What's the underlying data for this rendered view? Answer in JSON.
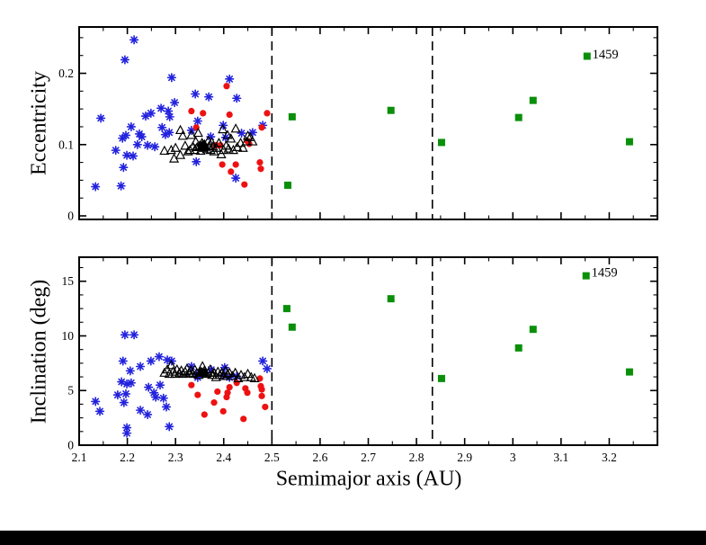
{
  "colors": {
    "blue": "#2222dd",
    "red": "#ee1111",
    "green": "#0a8f0a",
    "black": "#000000",
    "background": "#ffffff",
    "bottom_bar": "#000000"
  },
  "annotation_label": "1459",
  "chart_data": [
    {
      "type": "scatter",
      "panel": "top",
      "xlabel": "",
      "ylabel": "Eccentricity",
      "xlim": [
        2.1,
        3.3
      ],
      "ylim": [
        -0.005,
        0.265
      ],
      "grid": false,
      "legend": "none",
      "xticks": {
        "values": [
          2.1,
          2.2,
          2.3,
          2.4,
          2.5,
          2.6,
          2.7,
          2.8,
          2.9,
          3.0,
          3.1,
          3.2
        ],
        "labels": [],
        "minor_step": 0.05
      },
      "yticks": {
        "values": [
          0,
          0.1,
          0.2
        ],
        "labels": [
          "0",
          "0.1",
          "0.2"
        ],
        "minor_step": 0.025
      },
      "vlines": [
        2.5,
        2.833
      ],
      "annotation": {
        "text": "1459",
        "x": 3.165,
        "y": 0.226
      },
      "series": [
        {
          "name": "blue-asterisks",
          "marker": "asterisk",
          "color": "blue",
          "points": [
            [
              2.214,
              0.247
            ],
            [
              2.195,
              0.219
            ],
            [
              2.292,
              0.194
            ],
            [
              2.298,
              0.159
            ],
            [
              2.145,
              0.137
            ],
            [
              2.238,
              0.14
            ],
            [
              2.249,
              0.144
            ],
            [
              2.27,
              0.151
            ],
            [
              2.285,
              0.147
            ],
            [
              2.288,
              0.139
            ],
            [
              2.208,
              0.125
            ],
            [
              2.272,
              0.124
            ],
            [
              2.279,
              0.114
            ],
            [
              2.287,
              0.117
            ],
            [
              2.19,
              0.109
            ],
            [
              2.197,
              0.113
            ],
            [
              2.225,
              0.115
            ],
            [
              2.23,
              0.111
            ],
            [
              2.221,
              0.1
            ],
            [
              2.242,
              0.099
            ],
            [
              2.176,
              0.092
            ],
            [
              2.257,
              0.097
            ],
            [
              2.199,
              0.085
            ],
            [
              2.212,
              0.084
            ],
            [
              2.192,
              0.068
            ],
            [
              2.134,
              0.041
            ],
            [
              2.187,
              0.042
            ],
            [
              2.412,
              0.192
            ],
            [
              2.341,
              0.171
            ],
            [
              2.369,
              0.167
            ],
            [
              2.427,
              0.165
            ],
            [
              2.481,
              0.127
            ],
            [
              2.346,
              0.133
            ],
            [
              2.399,
              0.127
            ],
            [
              2.333,
              0.12
            ],
            [
              2.373,
              0.111
            ],
            [
              2.404,
              0.11
            ],
            [
              2.343,
              0.076
            ],
            [
              2.425,
              0.053
            ],
            [
              2.437,
              0.116
            ],
            [
              2.46,
              0.117
            ]
          ]
        },
        {
          "name": "red-circles",
          "marker": "circle",
          "color": "red",
          "points": [
            [
              2.406,
              0.182
            ],
            [
              2.333,
              0.147
            ],
            [
              2.357,
              0.144
            ],
            [
              2.412,
              0.142
            ],
            [
              2.49,
              0.144
            ],
            [
              2.343,
              0.124
            ],
            [
              2.479,
              0.124
            ],
            [
              2.449,
              0.105
            ],
            [
              2.453,
              0.101
            ],
            [
              2.384,
              0.099
            ],
            [
              2.393,
              0.099
            ],
            [
              2.397,
              0.072
            ],
            [
              2.415,
              0.062
            ],
            [
              2.425,
              0.072
            ],
            [
              2.475,
              0.075
            ],
            [
              2.477,
              0.066
            ],
            [
              2.443,
              0.044
            ]
          ]
        },
        {
          "name": "open-triangles",
          "marker": "triangle-open",
          "color": "black",
          "points": [
            [
              2.277,
              0.091
            ],
            [
              2.291,
              0.092
            ],
            [
              2.297,
              0.08
            ],
            [
              2.31,
              0.085
            ],
            [
              2.3,
              0.095
            ],
            [
              2.315,
              0.112
            ],
            [
              2.32,
              0.098
            ],
            [
              2.326,
              0.09
            ],
            [
              2.33,
              0.092
            ],
            [
              2.333,
              0.113
            ],
            [
              2.336,
              0.097
            ],
            [
              2.34,
              0.092
            ],
            [
              2.342,
              0.104
            ],
            [
              2.345,
              0.096
            ],
            [
              2.347,
              0.116
            ],
            [
              2.35,
              0.098
            ],
            [
              2.352,
              0.091
            ],
            [
              2.355,
              0.102
            ],
            [
              2.358,
              0.095
            ],
            [
              2.36,
              0.1
            ],
            [
              2.362,
              0.097
            ],
            [
              2.365,
              0.093
            ],
            [
              2.368,
              0.105
            ],
            [
              2.37,
              0.098
            ],
            [
              2.373,
              0.092
            ],
            [
              2.375,
              0.103
            ],
            [
              2.378,
              0.097
            ],
            [
              2.38,
              0.09
            ],
            [
              2.385,
              0.095
            ],
            [
              2.39,
              0.102
            ],
            [
              2.395,
              0.086
            ],
            [
              2.4,
              0.092
            ],
            [
              2.405,
              0.098
            ],
            [
              2.41,
              0.094
            ],
            [
              2.415,
              0.108
            ],
            [
              2.42,
              0.092
            ],
            [
              2.428,
              0.096
            ],
            [
              2.435,
              0.102
            ],
            [
              2.44,
              0.095
            ],
            [
              2.447,
              0.104
            ],
            [
              2.45,
              0.112
            ],
            [
              2.455,
              0.11
            ],
            [
              2.46,
              0.104
            ],
            [
              2.398,
              0.121
            ],
            [
              2.408,
              0.113
            ],
            [
              2.425,
              0.122
            ],
            [
              2.31,
              0.12
            ]
          ]
        },
        {
          "name": "filled-triangles",
          "marker": "triangle-filled",
          "color": "black",
          "points": [
            [
              2.353,
              0.097
            ],
            [
              2.357,
              0.096
            ],
            [
              2.36,
              0.098
            ],
            [
              2.356,
              0.099
            ]
          ]
        },
        {
          "name": "green-squares",
          "marker": "square",
          "color": "green",
          "points": [
            [
              2.542,
              0.139
            ],
            [
              2.533,
              0.043
            ],
            [
              2.747,
              0.148
            ],
            [
              2.852,
              0.103
            ],
            [
              3.012,
              0.138
            ],
            [
              3.042,
              0.162
            ],
            [
              3.154,
              0.224
            ],
            [
              3.242,
              0.104
            ]
          ]
        }
      ]
    },
    {
      "type": "scatter",
      "panel": "bottom",
      "xlabel": "Semimajor axis (AU)",
      "ylabel": "Inclination (deg)",
      "xlim": [
        2.1,
        3.3
      ],
      "ylim": [
        0,
        17.2
      ],
      "grid": false,
      "legend": "none",
      "xticks": {
        "values": [
          2.1,
          2.2,
          2.3,
          2.4,
          2.5,
          2.6,
          2.7,
          2.8,
          2.9,
          3.0,
          3.1,
          3.2
        ],
        "labels": [
          "2.1",
          "2.2",
          "2.3",
          "2.4",
          "2.5",
          "2.6",
          "2.7",
          "2.8",
          "2.9",
          "3",
          "3.1",
          "3.2"
        ],
        "minor_step": 0.05
      },
      "yticks": {
        "values": [
          0,
          5,
          10,
          15
        ],
        "labels": [
          "0",
          "5",
          "10",
          "15"
        ],
        "minor_step": 1.25
      },
      "vlines": [
        2.5,
        2.833
      ],
      "annotation": {
        "text": "1459",
        "x": 3.163,
        "y": 15.75
      },
      "series": [
        {
          "name": "blue-asterisks",
          "marker": "asterisk",
          "color": "blue",
          "points": [
            [
              2.195,
              10.1
            ],
            [
              2.214,
              10.1
            ],
            [
              2.191,
              7.7
            ],
            [
              2.249,
              7.7
            ],
            [
              2.227,
              7.2
            ],
            [
              2.206,
              6.8
            ],
            [
              2.266,
              8.1
            ],
            [
              2.283,
              7.8
            ],
            [
              2.292,
              7.7
            ],
            [
              2.188,
              5.8
            ],
            [
              2.199,
              5.6
            ],
            [
              2.208,
              5.7
            ],
            [
              2.244,
              5.3
            ],
            [
              2.268,
              5.5
            ],
            [
              2.197,
              4.7
            ],
            [
              2.18,
              4.6
            ],
            [
              2.193,
              3.9
            ],
            [
              2.134,
              4.0
            ],
            [
              2.143,
              3.1
            ],
            [
              2.227,
              3.2
            ],
            [
              2.242,
              2.8
            ],
            [
              2.287,
              1.7
            ],
            [
              2.199,
              1.6
            ],
            [
              2.199,
              1.1
            ],
            [
              2.255,
              4.8
            ],
            [
              2.259,
              4.4
            ],
            [
              2.275,
              4.3
            ],
            [
              2.281,
              3.5
            ],
            [
              2.333,
              7.2
            ],
            [
              2.343,
              6.5
            ],
            [
              2.346,
              6.2
            ],
            [
              2.374,
              6.9
            ],
            [
              2.399,
              6.4
            ],
            [
              2.402,
              7.1
            ],
            [
              2.412,
              6.2
            ],
            [
              2.427,
              6.3
            ],
            [
              2.481,
              7.7
            ],
            [
              2.49,
              7.0
            ]
          ]
        },
        {
          "name": "red-circles",
          "marker": "circle",
          "color": "red",
          "points": [
            [
              2.333,
              5.5
            ],
            [
              2.346,
              4.6
            ],
            [
              2.36,
              2.8
            ],
            [
              2.38,
              3.9
            ],
            [
              2.387,
              4.9
            ],
            [
              2.399,
              3.1
            ],
            [
              2.406,
              4.4
            ],
            [
              2.408,
              4.8
            ],
            [
              2.412,
              5.3
            ],
            [
              2.427,
              5.7
            ],
            [
              2.441,
              2.4
            ],
            [
              2.445,
              5.2
            ],
            [
              2.449,
              4.8
            ],
            [
              2.475,
              6.1
            ],
            [
              2.477,
              5.4
            ],
            [
              2.479,
              5.1
            ],
            [
              2.479,
              4.5
            ],
            [
              2.486,
              3.5
            ]
          ]
        },
        {
          "name": "open-triangles",
          "marker": "triangle-open",
          "color": "black",
          "points": [
            [
              2.277,
              6.6
            ],
            [
              2.283,
              6.9
            ],
            [
              2.287,
              6.5
            ],
            [
              2.291,
              7.3
            ],
            [
              2.295,
              6.7
            ],
            [
              2.299,
              6.5
            ],
            [
              2.303,
              6.9
            ],
            [
              2.308,
              6.6
            ],
            [
              2.312,
              6.8
            ],
            [
              2.316,
              6.5
            ],
            [
              2.32,
              6.7
            ],
            [
              2.324,
              7.0
            ],
            [
              2.328,
              6.6
            ],
            [
              2.332,
              6.8
            ],
            [
              2.336,
              6.5
            ],
            [
              2.34,
              6.9
            ],
            [
              2.344,
              6.6
            ],
            [
              2.348,
              6.4
            ],
            [
              2.352,
              6.7
            ],
            [
              2.356,
              7.2
            ],
            [
              2.36,
              6.8
            ],
            [
              2.364,
              6.5
            ],
            [
              2.368,
              6.6
            ],
            [
              2.372,
              6.9
            ],
            [
              2.376,
              6.4
            ],
            [
              2.38,
              6.6
            ],
            [
              2.384,
              6.2
            ],
            [
              2.388,
              6.7
            ],
            [
              2.392,
              6.4
            ],
            [
              2.396,
              6.6
            ],
            [
              2.4,
              6.3
            ],
            [
              2.404,
              6.8
            ],
            [
              2.408,
              6.5
            ],
            [
              2.412,
              6.6
            ],
            [
              2.418,
              6.3
            ],
            [
              2.424,
              6.6
            ],
            [
              2.43,
              6.1
            ],
            [
              2.436,
              6.4
            ],
            [
              2.443,
              6.2
            ],
            [
              2.45,
              6.5
            ],
            [
              2.457,
              6.2
            ],
            [
              2.464,
              6.1
            ]
          ]
        },
        {
          "name": "filled-triangles",
          "marker": "triangle-filled",
          "color": "black",
          "points": [
            [
              2.35,
              6.6
            ],
            [
              2.355,
              6.65
            ],
            [
              2.36,
              6.6
            ]
          ]
        },
        {
          "name": "green-squares",
          "marker": "square",
          "color": "green",
          "points": [
            [
              2.531,
              12.5
            ],
            [
              2.542,
              10.8
            ],
            [
              2.747,
              13.4
            ],
            [
              2.852,
              6.1
            ],
            [
              3.012,
              8.9
            ],
            [
              3.042,
              10.6
            ],
            [
              3.152,
              15.5
            ],
            [
              3.242,
              6.7
            ]
          ]
        }
      ]
    }
  ]
}
